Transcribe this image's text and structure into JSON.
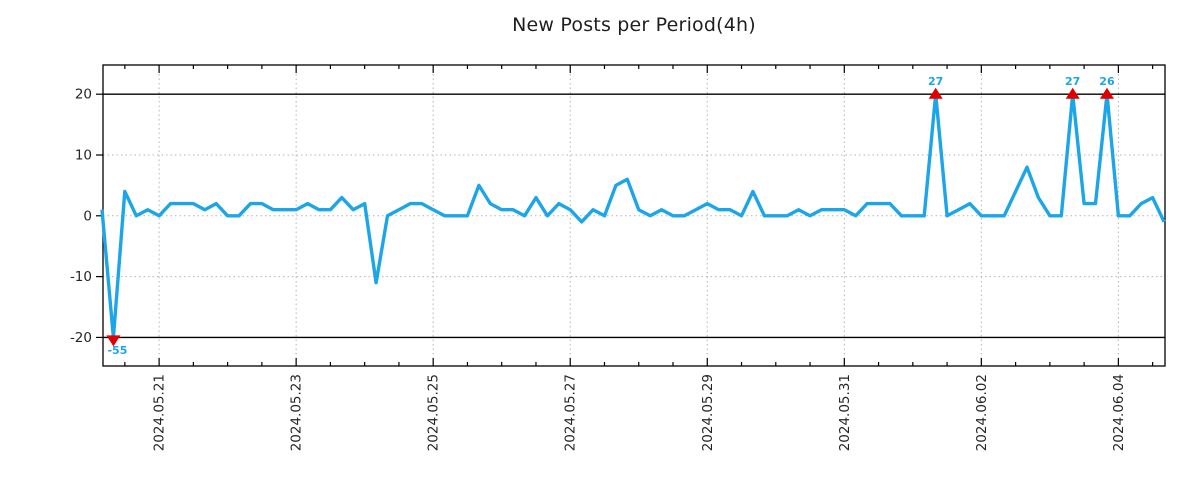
{
  "title": "New Posts per Period(4h)",
  "chart_data": {
    "type": "line",
    "title": "New Posts per Period(4h)",
    "period_label": "4h",
    "grid": true,
    "legend": "none",
    "ylim": [
      -24.7,
      24.8
    ],
    "clip_limit": 20,
    "y_ticks": [
      20,
      10,
      0,
      -10,
      -20
    ],
    "y_gridline_values": [
      10,
      0,
      -10
    ],
    "clip_line_values": [
      20,
      -20
    ],
    "x_tick_labels": [
      "2024.05.21",
      "2024.05.23",
      "2024.05.25",
      "2024.05.27",
      "2024.05.29",
      "2024.05.31",
      "2024.06.02",
      "2024.06.04"
    ],
    "series": [
      {
        "name": "new-posts-per-4h",
        "values": [
          1,
          -55,
          4,
          0,
          1,
          0,
          2,
          2,
          2,
          1,
          2,
          0,
          0,
          2,
          2,
          1,
          1,
          1,
          2,
          1,
          1,
          3,
          1,
          2,
          -11,
          0,
          1,
          2,
          2,
          1,
          0,
          0,
          0,
          5,
          2,
          1,
          1,
          0,
          3,
          0,
          2,
          1,
          -1,
          1,
          0,
          5,
          6,
          1,
          0,
          1,
          0,
          0,
          1,
          2,
          1,
          1,
          0,
          4,
          0,
          0,
          0,
          1,
          0,
          1,
          1,
          1,
          0,
          2,
          2,
          2,
          0,
          0,
          0,
          27,
          0,
          1,
          2,
          0,
          0,
          0,
          4,
          8,
          3,
          0,
          0,
          27,
          2,
          2,
          26,
          0,
          0,
          2,
          3,
          -1
        ]
      }
    ],
    "annotations": [
      {
        "point_index": 1,
        "label": "-55",
        "direction": "down"
      },
      {
        "point_index": 73,
        "label": "27",
        "direction": "up"
      },
      {
        "point_index": 85,
        "label": "27",
        "direction": "up"
      },
      {
        "point_index": 88,
        "label": "26",
        "direction": "up"
      }
    ],
    "colors": {
      "line": "#1ca6e8",
      "marker": "#e00000",
      "annotation_text": "#1ca6e8",
      "grid": "#b3b3b3",
      "axis": "#000000",
      "clip_line": "#000000",
      "tick_label": "#262626",
      "title": "#1f1f1f",
      "background": "#ffffff"
    }
  }
}
